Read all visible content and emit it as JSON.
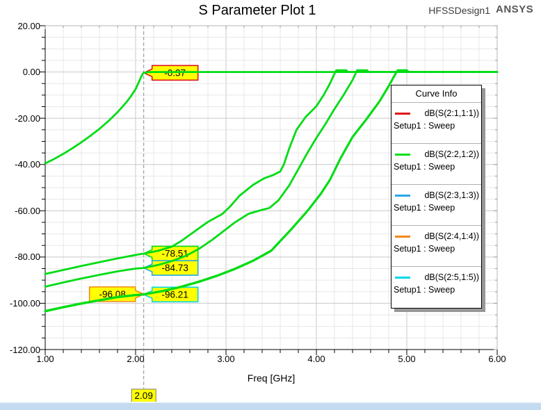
{
  "header": {
    "title": "S Parameter Plot 1",
    "design_name": "HFSSDesign1",
    "logo": "ANSYS"
  },
  "axes": {
    "x_label": "Freq [GHz]",
    "x_ticks": [
      "1.00",
      "2.00",
      "3.00",
      "4.00",
      "5.00",
      "6.00"
    ],
    "y_ticks": [
      "20.00",
      "0.00",
      "-20.00",
      "-40.00",
      "-60.00",
      "-80.00",
      "-100.00",
      "-120.00"
    ]
  },
  "legend": {
    "title": "Curve Info",
    "entries": [
      {
        "label": "dB(S(2:1,1:1))",
        "sub": "Setup1 : Sweep",
        "color": "#e01414"
      },
      {
        "label": "dB(S(2:2,1:2))",
        "sub": "Setup1 : Sweep",
        "color": "#00e018"
      },
      {
        "label": "dB(S(2:3,1:3))",
        "sub": "Setup1 : Sweep",
        "color": "#28a8e8"
      },
      {
        "label": "dB(S(2:4,1:4))",
        "sub": "Setup1 : Sweep",
        "color": "#f08818"
      },
      {
        "label": "dB(S(2:5,1:5))",
        "sub": "Setup1 : Sweep",
        "color": "#00d8e8"
      }
    ]
  },
  "cursor": {
    "x_value": "2.09",
    "freq": 2.09
  },
  "markers": [
    {
      "label": "-0.37",
      "freq": 2.09,
      "db": -0.37,
      "color": "#e01414",
      "side": "right"
    },
    {
      "label": "-78.51",
      "freq": 2.09,
      "db": -78.51,
      "color": "#00e018",
      "side": "right"
    },
    {
      "label": "-84.73",
      "freq": 2.09,
      "db": -84.73,
      "color": "#28a8e8",
      "side": "right"
    },
    {
      "label": "-96.08",
      "freq": 2.09,
      "db": -96.08,
      "color": "#f08818",
      "side": "left"
    },
    {
      "label": "-96.21",
      "freq": 2.09,
      "db": -96.21,
      "color": "#00d8e8",
      "side": "right"
    }
  ],
  "chart_data": {
    "type": "line",
    "title": "S Parameter Plot 1",
    "xlabel": "Freq [GHz]",
    "ylabel": "",
    "xlim": [
      1.0,
      6.0
    ],
    "ylim": [
      -120,
      20
    ],
    "x_major_step": 1.0,
    "x_minor_step": 0.2,
    "y_major_step": 20,
    "y_minor_step": 5,
    "grid": true,
    "legend_position": "right",
    "plot_color": "#00dc14",
    "cursor_freq": 2.09,
    "series": [
      {
        "name": "dB(S(2:1,1:1))",
        "setup": "Setup1 : Sweep",
        "legend_color": "#e01414",
        "marker_value": -0.37,
        "points": [
          [
            1.0,
            -39.5
          ],
          [
            1.1,
            -37.6
          ],
          [
            1.2,
            -35.4
          ],
          [
            1.3,
            -33.0
          ],
          [
            1.4,
            -30.4
          ],
          [
            1.5,
            -27.6
          ],
          [
            1.6,
            -24.6
          ],
          [
            1.7,
            -21.2
          ],
          [
            1.8,
            -17.4
          ],
          [
            1.9,
            -13.0
          ],
          [
            1.95,
            -10.4
          ],
          [
            2.0,
            -7.4
          ],
          [
            2.04,
            -4.0
          ],
          [
            2.06,
            -2.2
          ],
          [
            2.08,
            -0.8
          ],
          [
            2.09,
            -0.37
          ],
          [
            2.13,
            -0.1
          ],
          [
            2.2,
            0
          ],
          [
            6.0,
            0
          ]
        ]
      },
      {
        "name": "dB(S(2:2,1:2))",
        "setup": "Setup1 : Sweep",
        "legend_color": "#00e018",
        "marker_value": -78.51,
        "points": [
          [
            1.0,
            -87.3
          ],
          [
            1.2,
            -85.6
          ],
          [
            1.4,
            -83.9
          ],
          [
            1.6,
            -82.2
          ],
          [
            1.8,
            -80.6
          ],
          [
            2.0,
            -79.1
          ],
          [
            2.09,
            -78.51
          ],
          [
            2.25,
            -77.3
          ],
          [
            2.4,
            -75.5
          ],
          [
            2.5,
            -73.2
          ],
          [
            2.65,
            -69.0
          ],
          [
            2.8,
            -64.8
          ],
          [
            2.96,
            -61.4
          ],
          [
            3.05,
            -58.0
          ],
          [
            3.15,
            -53.5
          ],
          [
            3.3,
            -48.8
          ],
          [
            3.42,
            -46.0
          ],
          [
            3.52,
            -44.6
          ],
          [
            3.6,
            -43.0
          ],
          [
            3.64,
            -40.0
          ],
          [
            3.7,
            -33.0
          ],
          [
            3.78,
            -25.0
          ],
          [
            3.88,
            -19.5
          ],
          [
            4.0,
            -14.8
          ],
          [
            4.08,
            -10.0
          ],
          [
            4.15,
            -5.0
          ],
          [
            4.2,
            -0.8
          ],
          [
            4.22,
            0.7
          ],
          [
            4.33,
            0.7
          ],
          [
            4.35,
            0
          ],
          [
            6.0,
            0
          ]
        ]
      },
      {
        "name": "dB(S(2:3,1:3))",
        "setup": "Setup1 : Sweep",
        "legend_color": "#28a8e8",
        "marker_value": -84.73,
        "points": [
          [
            1.0,
            -92.8
          ],
          [
            1.2,
            -91.0
          ],
          [
            1.4,
            -89.3
          ],
          [
            1.6,
            -87.7
          ],
          [
            1.8,
            -86.2
          ],
          [
            2.0,
            -85.0
          ],
          [
            2.09,
            -84.73
          ],
          [
            2.25,
            -83.4
          ],
          [
            2.4,
            -81.8
          ],
          [
            2.55,
            -79.6
          ],
          [
            2.7,
            -76.5
          ],
          [
            2.85,
            -72.5
          ],
          [
            3.0,
            -68.0
          ],
          [
            3.1,
            -65.0
          ],
          [
            3.25,
            -61.3
          ],
          [
            3.38,
            -59.8
          ],
          [
            3.48,
            -58.8
          ],
          [
            3.58,
            -55.5
          ],
          [
            3.7,
            -49.0
          ],
          [
            3.8,
            -42.0
          ],
          [
            3.9,
            -35.0
          ],
          [
            4.0,
            -28.5
          ],
          [
            4.1,
            -22.5
          ],
          [
            4.2,
            -16.0
          ],
          [
            4.3,
            -10.0
          ],
          [
            4.4,
            -3.5
          ],
          [
            4.45,
            0.7
          ],
          [
            4.56,
            0.7
          ],
          [
            4.58,
            0
          ],
          [
            6.0,
            0
          ]
        ]
      },
      {
        "name": "dB(S(2:4,1:4))",
        "setup": "Setup1 : Sweep",
        "legend_color": "#f08818",
        "marker_value": -96.08,
        "points": [
          [
            1.0,
            -103.3
          ],
          [
            1.2,
            -101.6
          ],
          [
            1.4,
            -100.0
          ],
          [
            1.6,
            -98.6
          ],
          [
            1.8,
            -97.2
          ],
          [
            2.0,
            -96.4
          ],
          [
            2.09,
            -96.08
          ],
          [
            2.3,
            -94.6
          ],
          [
            2.5,
            -92.8
          ],
          [
            2.7,
            -90.6
          ],
          [
            2.9,
            -88.0
          ],
          [
            3.1,
            -85.0
          ],
          [
            3.3,
            -81.5
          ],
          [
            3.5,
            -77.2
          ],
          [
            3.72,
            -68.0
          ],
          [
            3.9,
            -60.0
          ],
          [
            4.05,
            -52.5
          ],
          [
            4.15,
            -46.5
          ],
          [
            4.27,
            -37.0
          ],
          [
            4.4,
            -28.0
          ],
          [
            4.55,
            -20.5
          ],
          [
            4.7,
            -12.5
          ],
          [
            4.8,
            -6.0
          ],
          [
            4.87,
            -1.0
          ],
          [
            4.9,
            0.7
          ],
          [
            5.0,
            0.7
          ],
          [
            5.02,
            0
          ],
          [
            6.0,
            0
          ]
        ]
      },
      {
        "name": "dB(S(2:5,1:5))",
        "setup": "Setup1 : Sweep",
        "legend_color": "#00d8e8",
        "marker_value": -96.21,
        "points": [
          [
            1.0,
            -103.5
          ],
          [
            1.2,
            -101.8
          ],
          [
            1.4,
            -100.2
          ],
          [
            1.6,
            -98.8
          ],
          [
            1.8,
            -97.4
          ],
          [
            2.0,
            -96.5
          ],
          [
            2.09,
            -96.21
          ],
          [
            2.3,
            -94.8
          ],
          [
            2.5,
            -93.0
          ],
          [
            2.7,
            -90.8
          ],
          [
            2.9,
            -88.2
          ],
          [
            3.1,
            -85.2
          ],
          [
            3.3,
            -81.7
          ],
          [
            3.5,
            -77.4
          ],
          [
            3.72,
            -68.2
          ],
          [
            3.9,
            -60.2
          ],
          [
            4.05,
            -52.7
          ],
          [
            4.15,
            -46.7
          ],
          [
            4.27,
            -37.2
          ],
          [
            4.4,
            -28.2
          ],
          [
            4.55,
            -20.7
          ],
          [
            4.7,
            -12.7
          ],
          [
            4.8,
            -6.2
          ],
          [
            4.87,
            -1.2
          ],
          [
            4.9,
            0.7
          ],
          [
            5.0,
            0.7
          ],
          [
            5.02,
            0
          ],
          [
            6.0,
            0
          ]
        ]
      }
    ]
  }
}
